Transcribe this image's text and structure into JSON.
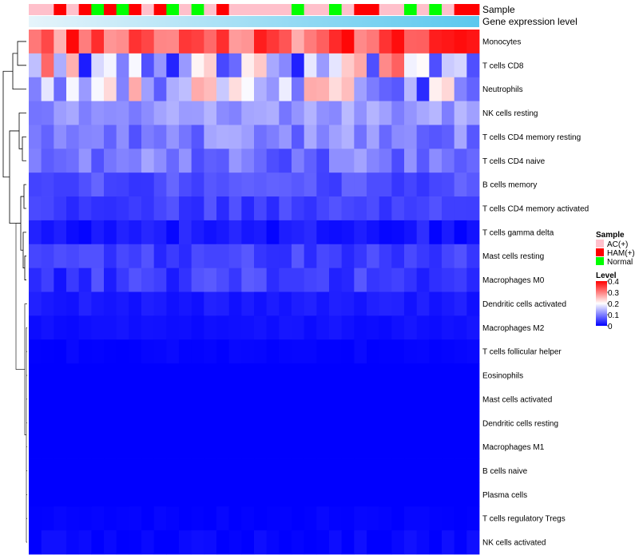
{
  "chart_data": {
    "type": "heatmap",
    "annotations": {
      "sample_label": "Sample",
      "expression_label": "Gene expression level"
    },
    "sample_groups": [
      "AC(+)",
      "HAM(+)",
      "Normal"
    ],
    "sample_colors": {
      "AC(+)": "#ffc0cb",
      "HAM(+)": "#ff0000",
      "Normal": "#00ff00"
    },
    "sample_columns": [
      "AC(+)",
      "AC(+)",
      "HAM(+)",
      "AC(+)",
      "HAM(+)",
      "Normal",
      "HAM(+)",
      "Normal",
      "HAM(+)",
      "AC(+)",
      "HAM(+)",
      "Normal",
      "AC(+)",
      "Normal",
      "AC(+)",
      "HAM(+)",
      "AC(+)",
      "AC(+)",
      "AC(+)",
      "AC(+)",
      "AC(+)",
      "Normal",
      "AC(+)",
      "AC(+)",
      "Normal",
      "AC(+)",
      "HAM(+)",
      "HAM(+)",
      "AC(+)",
      "AC(+)",
      "Normal",
      "AC(+)",
      "Normal",
      "AC(+)",
      "HAM(+)",
      "HAM(+)"
    ],
    "expression_gradient": [
      "#e6f4fb",
      "#5ac8ee"
    ],
    "rows": [
      "Monocytes",
      "T cells CD8",
      "Neutrophils",
      "NK cells resting",
      "T cells CD4 memory resting",
      "T cells CD4 naive",
      "B cells memory",
      "T cells CD4 memory activated",
      "T cells gamma delta",
      "Mast cells resting",
      "Macrophages M0",
      "Dendritic cells activated",
      "Macrophages M2",
      "T cells follicular helper",
      "Eosinophils",
      "Mast cells activated",
      "Dendritic cells resting",
      "Macrophages M1",
      "B cells naive",
      "Plasma cells",
      "T cells regulatory  Tregs",
      "NK cells activated"
    ],
    "row_base": [
      0.33,
      0.18,
      0.15,
      0.12,
      0.1,
      0.09,
      0.06,
      0.05,
      0.02,
      0.05,
      0.045,
      0.02,
      0.012,
      0.004,
      0.0,
      0.0,
      0.0,
      0.0,
      0.0,
      0.0,
      0.002,
      0.004
    ],
    "row_variation": [
      0.07,
      0.16,
      0.12,
      0.03,
      0.04,
      0.04,
      0.02,
      0.02,
      0.02,
      0.02,
      0.03,
      0.008,
      0.006,
      0.004,
      0.0,
      0.0,
      0.0,
      0.0,
      0.0,
      0.0,
      0.004,
      0.01
    ],
    "legend": {
      "sample_title": "Sample",
      "level_title": "Level",
      "level_ticks": [
        "0.4",
        "0.3",
        "0.2",
        "0.1",
        "0"
      ],
      "level_range": [
        0,
        0.4
      ],
      "color_stops": [
        "#0000ff",
        "#ffffff",
        "#ff0000"
      ]
    }
  }
}
